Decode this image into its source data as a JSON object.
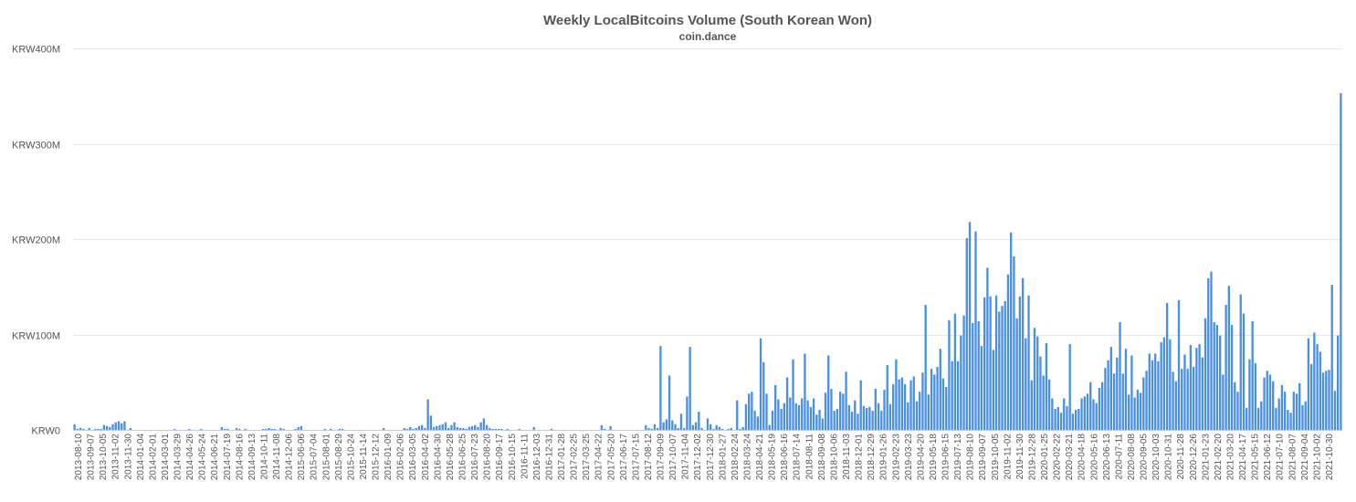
{
  "chart_data": {
    "type": "bar",
    "title": "Weekly LocalBitcoins Volume (South Korean Won)",
    "subtitle": "coin.dance",
    "xlabel": "",
    "ylabel": "",
    "y_unit": "KRW",
    "ylim": [
      0,
      400000000
    ],
    "y_ticks": [
      {
        "value": 0,
        "label": "KRW0"
      },
      {
        "value": 100000000,
        "label": "KRW100M"
      },
      {
        "value": 200000000,
        "label": "KRW200M"
      },
      {
        "value": 300000000,
        "label": "KRW300M"
      },
      {
        "value": 400000000,
        "label": "KRW400M"
      }
    ],
    "color": "#4a90e2",
    "grid": true,
    "legend": "none",
    "x_tick_labels": [
      "2013-08-10",
      "2013-09-07",
      "2013-10-05",
      "2013-11-02",
      "2013-11-30",
      "2014-01-04",
      "2014-02-01",
      "2014-03-01",
      "2014-03-29",
      "2014-04-26",
      "2014-05-24",
      "2014-06-21",
      "2014-07-19",
      "2014-08-16",
      "2014-09-13",
      "2014-10-11",
      "2014-11-08",
      "2014-12-06",
      "2015-06-06",
      "2015-07-04",
      "2015-08-01",
      "2015-08-29",
      "2015-10-24",
      "2015-11-14",
      "2015-12-12",
      "2016-01-09",
      "2016-02-06",
      "2016-03-05",
      "2016-04-02",
      "2016-04-30",
      "2016-05-28",
      "2016-06-25",
      "2016-07-23",
      "2016-08-20",
      "2016-09-17",
      "2016-10-15",
      "2016-11-11",
      "2016-12-03",
      "2016-12-31",
      "2017-01-28",
      "2017-02-25",
      "2017-03-25",
      "2017-04-22",
      "2017-05-20",
      "2017-06-17",
      "2017-07-15",
      "2017-08-12",
      "2017-09-09",
      "2017-10-07",
      "2017-11-04",
      "2017-12-02",
      "2017-12-30",
      "2018-01-27",
      "2018-02-24",
      "2018-03-24",
      "2018-04-21",
      "2018-05-19",
      "2018-06-16",
      "2018-07-14",
      "2018-08-11",
      "2018-09-08",
      "2018-10-06",
      "2018-11-03",
      "2018-12-01",
      "2018-12-29",
      "2019-01-26",
      "2019-02-23",
      "2019-03-23",
      "2019-04-20",
      "2019-05-18",
      "2019-06-15",
      "2019-07-13",
      "2019-08-10",
      "2019-09-07",
      "2019-10-05",
      "2019-11-02",
      "2019-11-30",
      "2019-12-28",
      "2020-01-25",
      "2020-02-22",
      "2020-03-21",
      "2020-04-18",
      "2020-05-16",
      "2020-06-13",
      "2020-07-11",
      "2020-08-08",
      "2020-09-05",
      "2020-10-03",
      "2020-10-31",
      "2020-11-28",
      "2020-12-26",
      "2021-01-23",
      "2021-02-20",
      "2021-03-20",
      "2021-04-17",
      "2021-05-15",
      "2021-06-12",
      "2021-07-10",
      "2021-08-07",
      "2021-09-04",
      "2021-10-02",
      "2021-10-30"
    ],
    "values_millions": [
      6,
      1,
      2,
      1,
      0,
      2,
      0,
      1,
      1,
      1,
      5,
      4,
      3,
      6,
      8,
      9,
      7,
      9,
      0,
      2,
      0,
      0,
      0,
      0,
      0,
      0,
      0,
      0,
      0,
      0,
      0,
      0,
      0,
      0,
      1,
      0,
      0,
      0,
      0,
      1,
      0,
      0,
      0,
      1,
      0,
      0,
      0,
      0,
      0,
      0,
      3,
      1,
      1,
      0,
      0,
      2,
      1,
      0,
      1,
      0,
      0,
      0,
      0,
      0,
      1,
      1,
      2,
      1,
      1,
      0,
      2,
      1,
      0,
      0,
      0,
      1,
      3,
      4,
      0,
      0,
      0,
      0,
      0,
      0,
      0,
      1,
      0,
      1,
      0,
      0,
      1,
      1,
      0,
      0,
      0,
      0,
      0,
      0,
      0,
      0,
      0,
      0,
      0,
      0,
      0,
      2,
      0,
      0,
      0,
      0,
      0,
      0,
      2,
      1,
      3,
      1,
      2,
      4,
      5,
      2,
      32,
      15,
      3,
      4,
      5,
      6,
      8,
      2,
      5,
      8,
      3,
      2,
      2,
      1,
      3,
      4,
      5,
      3,
      8,
      12,
      5,
      2,
      1,
      1,
      1,
      1,
      0,
      1,
      0,
      0,
      0,
      1,
      0,
      0,
      0,
      0,
      3,
      0,
      0,
      0,
      0,
      0,
      1,
      0,
      0,
      0,
      0,
      0,
      0,
      0,
      0,
      0,
      0,
      0,
      0,
      0,
      0,
      0,
      0,
      5,
      1,
      0,
      4,
      0,
      0,
      0,
      0,
      0,
      0,
      0,
      0,
      0,
      0,
      0,
      5,
      2,
      1,
      6,
      2,
      88,
      8,
      11,
      57,
      10,
      6,
      2,
      17,
      2,
      35,
      87,
      5,
      8,
      19,
      2,
      0,
      12,
      6,
      1,
      5,
      3,
      1,
      0,
      1,
      2,
      0,
      31,
      1,
      3,
      27,
      38,
      40,
      20,
      14,
      96,
      71,
      38,
      5,
      20,
      47,
      32,
      22,
      28,
      55,
      34,
      74,
      28,
      26,
      33,
      80,
      31,
      24,
      33,
      16,
      21,
      12,
      39,
      78,
      43,
      20,
      22,
      40,
      38,
      61,
      26,
      19,
      31,
      17,
      52,
      25,
      23,
      24,
      20,
      43,
      28,
      20,
      42,
      68,
      27,
      48,
      74,
      53,
      55,
      48,
      29,
      52,
      56,
      30,
      40,
      60,
      131,
      37,
      64,
      58,
      66,
      85,
      54,
      45,
      115,
      72,
      122,
      72,
      99,
      120,
      201,
      218,
      112,
      208,
      114,
      88,
      139,
      170,
      140,
      84,
      141,
      124,
      130,
      135,
      163,
      207,
      182,
      117,
      140,
      159,
      96,
      141,
      52,
      107,
      98,
      77,
      57,
      91,
      53,
      33,
      22,
      24,
      18,
      33,
      25,
      90,
      17,
      21,
      22,
      33,
      35,
      38,
      50,
      32,
      28,
      44,
      50,
      65,
      73,
      87,
      59,
      76,
      113,
      59,
      85,
      37,
      78,
      34,
      42,
      39,
      55,
      62,
      80,
      73,
      80,
      72,
      92,
      97,
      133,
      95,
      61,
      51,
      136,
      64,
      79,
      64,
      89,
      66,
      86,
      90,
      76,
      117,
      159,
      166,
      113,
      110,
      99,
      58,
      131,
      151,
      110,
      50,
      40,
      142,
      122,
      23,
      74,
      114,
      70,
      23,
      30,
      55,
      62,
      58,
      51,
      23,
      33,
      47,
      40,
      21,
      18,
      40,
      38,
      49,
      26,
      30,
      96,
      69,
      102,
      90,
      82,
      60,
      62,
      63,
      152,
      41,
      99,
      353
    ]
  }
}
